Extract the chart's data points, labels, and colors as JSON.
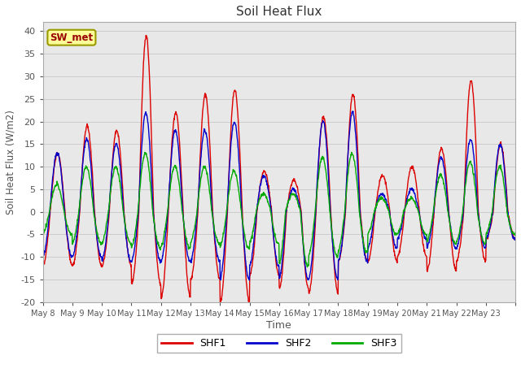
{
  "title": "Soil Heat Flux",
  "xlabel": "Time",
  "ylabel": "Soil Heat Flux (W/m2)",
  "ylim": [
    -20,
    42
  ],
  "yticks": [
    -20,
    -15,
    -10,
    -5,
    0,
    5,
    10,
    15,
    20,
    25,
    30,
    35,
    40
  ],
  "xtick_labels": [
    "May 8",
    "May 9",
    "May 10",
    "May 11",
    "May 12",
    "May 13",
    "May 14",
    "May 15",
    "May 16",
    "May 17",
    "May 18",
    "May 19",
    "May 20",
    "May 21",
    "May 22",
    "May 23"
  ],
  "legend_labels": [
    "SHF1",
    "SHF2",
    "SHF3"
  ],
  "line_colors": [
    "#dd0000",
    "#0000cc",
    "#00aa00"
  ],
  "bg_color": "#e8e8e8",
  "annotation_text": "SW_met",
  "annotation_bg": "#ffff99",
  "annotation_border": "#999900",
  "annotation_text_color": "#990000",
  "n_days": 16,
  "shf1_amps": [
    13,
    19,
    18,
    39,
    22,
    26,
    27,
    9,
    7,
    21,
    26,
    8,
    10,
    14,
    29,
    15
  ],
  "shf2_amps": [
    13,
    16,
    15,
    22,
    18,
    18,
    20,
    8,
    5,
    20,
    22,
    4,
    5,
    12,
    16,
    15
  ],
  "shf3_amps": [
    6,
    10,
    10,
    13,
    10,
    10,
    9,
    4,
    4,
    12,
    13,
    3,
    3,
    8,
    11,
    10
  ],
  "shf1_mins": [
    -12,
    -12,
    -12,
    -16,
    -19,
    -15,
    -20,
    -14,
    -17,
    -18,
    -11,
    -11,
    -10,
    -13,
    -11,
    -6
  ],
  "shf2_mins": [
    -10,
    -10,
    -11,
    -11,
    -11,
    -11,
    -15,
    -12,
    -15,
    -15,
    -11,
    -8,
    -6,
    -8,
    -8,
    -6
  ],
  "shf3_mins": [
    -5,
    -7,
    -7,
    -8,
    -8,
    -7,
    -8,
    -7,
    -12,
    -10,
    -9,
    -5,
    -5,
    -7,
    -7,
    -5
  ]
}
